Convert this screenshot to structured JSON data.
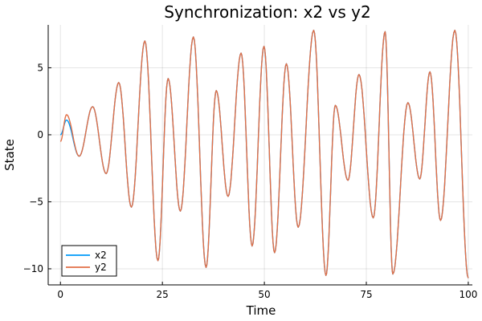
{
  "chart_data": {
    "type": "line",
    "title": "Synchronization: x2 vs y2",
    "xlabel": "Time",
    "ylabel": "State",
    "xlim": [
      -3,
      101
    ],
    "ylim": [
      -11.2,
      8.2
    ],
    "xticks": [
      0,
      25,
      50,
      75,
      100
    ],
    "xtick_labels": [
      "0",
      "25",
      "50",
      "75",
      "100"
    ],
    "yticks": [
      5,
      0,
      -5,
      -10
    ],
    "ytick_labels": [
      "5",
      "0",
      "−5",
      "−10"
    ],
    "grid": true,
    "legend_position": "bottom-left",
    "series": [
      {
        "name": "x2",
        "color": "#009af9",
        "x": [
          0,
          1.5,
          4.6,
          7.9,
          11.2,
          14.3,
          17.4,
          20.7,
          23.9,
          26.4,
          29.4,
          32.6,
          35.7,
          38.2,
          41.1,
          44.3,
          47,
          49.9,
          52.5,
          55.4,
          58.3,
          62.1,
          65.1,
          67.4,
          70.5,
          73.2,
          76.7,
          79.6,
          81.5,
          85.2,
          88.1,
          90.6,
          93.2,
          96.7,
          100
        ],
        "y": [
          0,
          1.1,
          -1.6,
          2.1,
          -2.9,
          3.9,
          -5.4,
          7.0,
          -9.4,
          4.2,
          -5.7,
          7.3,
          -9.9,
          3.3,
          -4.6,
          6.1,
          -8.3,
          6.6,
          -8.8,
          5.3,
          -6.9,
          7.8,
          -10.5,
          2.2,
          -3.4,
          4.5,
          -6.2,
          7.7,
          -10.4,
          2.4,
          -3.3,
          4.7,
          -6.4,
          7.8,
          -10.7
        ]
      },
      {
        "name": "y2",
        "color": "#e26f46",
        "x": [
          0,
          1.5,
          4.6,
          7.9,
          11.2,
          14.3,
          17.4,
          20.7,
          23.9,
          26.4,
          29.4,
          32.6,
          35.7,
          38.2,
          41.1,
          44.3,
          47,
          49.9,
          52.5,
          55.4,
          58.3,
          62.1,
          65.1,
          67.4,
          70.5,
          73.2,
          76.7,
          79.6,
          81.5,
          85.2,
          88.1,
          90.6,
          93.2,
          96.7,
          100
        ],
        "y": [
          -0.5,
          1.5,
          -1.6,
          2.1,
          -2.9,
          3.9,
          -5.4,
          7.0,
          -9.4,
          4.2,
          -5.7,
          7.3,
          -9.9,
          3.3,
          -4.6,
          6.1,
          -8.3,
          6.6,
          -8.8,
          5.3,
          -6.9,
          7.8,
          -10.5,
          2.2,
          -3.4,
          4.5,
          -6.2,
          7.7,
          -10.4,
          2.4,
          -3.3,
          4.7,
          -6.4,
          7.8,
          -10.7
        ]
      }
    ]
  }
}
